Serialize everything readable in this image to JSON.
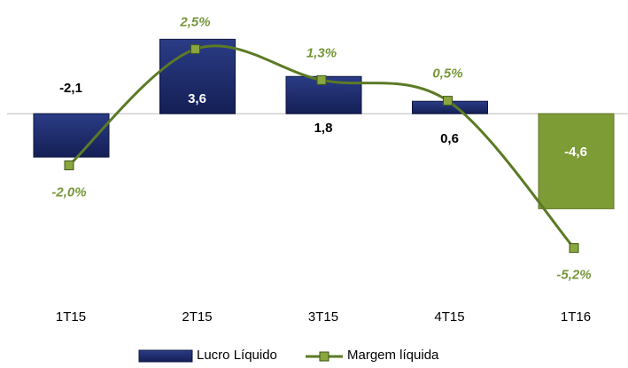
{
  "chart_data": {
    "type": "bar-line",
    "categories": [
      "1T15",
      "2T15",
      "3T15",
      "4T15",
      "1T16"
    ],
    "series": [
      {
        "name": "Lucro Líquido",
        "type": "bar",
        "color": "#1f2d6b",
        "colors": [
          "#1f2d6b",
          "#1f2d6b",
          "#1f2d6b",
          "#1f2d6b",
          "#7e9c36"
        ],
        "values": [
          -2.1,
          3.6,
          1.8,
          0.6,
          -4.6
        ],
        "value_labels": [
          "-2,1",
          "3,6",
          "1,8",
          "0,6",
          "-4,6"
        ]
      },
      {
        "name": "Margem líquida",
        "type": "line",
        "axis": "y2",
        "color": "#5c7a26",
        "values": [
          -2.0,
          2.5,
          1.3,
          0.5,
          -5.2
        ],
        "value_labels": [
          "-2,0%",
          "2,5%",
          "1,3%",
          "0,5%",
          "-5,2%"
        ]
      }
    ],
    "ylim": [
      -6,
      4
    ],
    "y2lim": [
      -4.8,
      3.2
    ]
  }
}
